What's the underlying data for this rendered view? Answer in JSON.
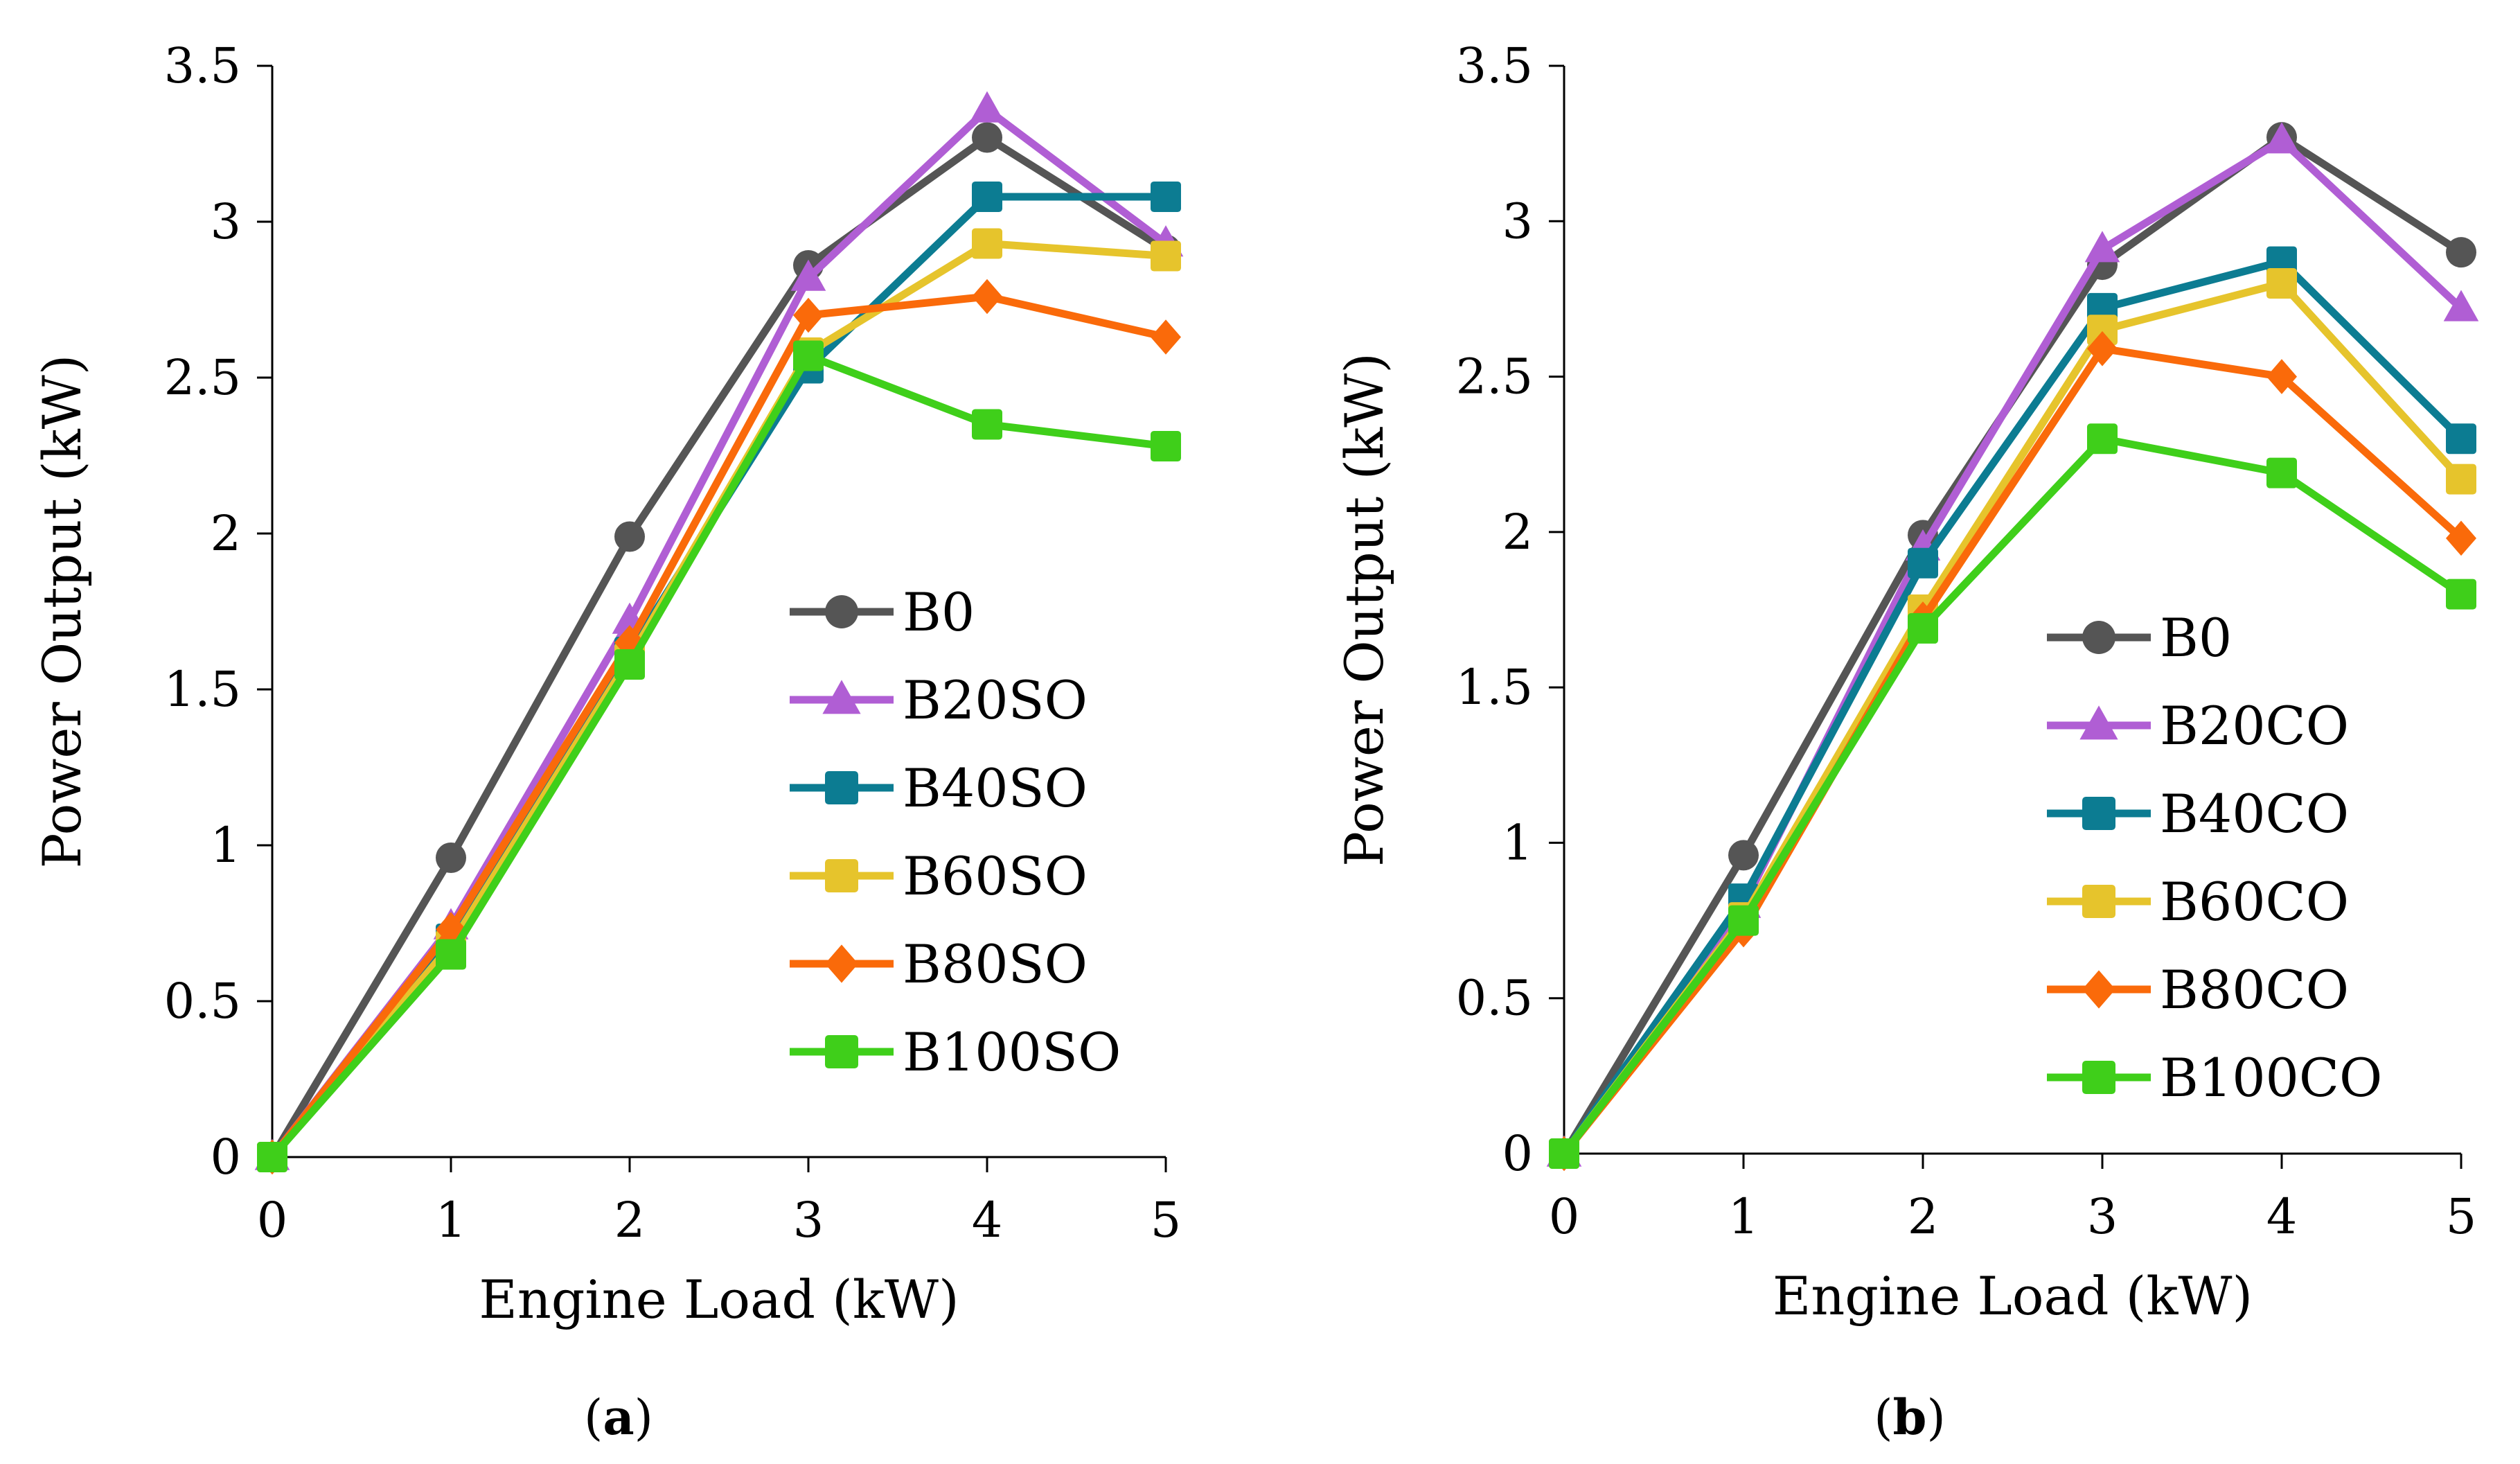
{
  "chart_data": [
    {
      "type": "line",
      "panel": "a",
      "caption": {
        "open": "(",
        "letter": "a",
        "close": ")"
      },
      "xlabel": "Engine Load (kW)",
      "ylabel": "Power Output (kW)",
      "x": [
        0,
        1,
        2,
        3,
        4,
        5
      ],
      "xlim": [
        0,
        5
      ],
      "ylim": [
        0,
        3.5
      ],
      "x_ticks": [
        "0",
        "1",
        "2",
        "3",
        "4",
        "5"
      ],
      "y_ticks": [
        "0",
        "0.5",
        "1",
        "1.5",
        "2",
        "2.5",
        "3",
        "3.5"
      ],
      "legend_position": "center-right",
      "series": [
        {
          "name": "B0",
          "values": [
            0,
            0.96,
            1.99,
            2.86,
            3.27,
            2.91
          ],
          "color": "#555555",
          "marker": "circle"
        },
        {
          "name": "B20SO",
          "values": [
            0,
            0.74,
            1.72,
            2.82,
            3.36,
            2.93
          ],
          "color": "#b05ed4",
          "marker": "triangle"
        },
        {
          "name": "B40SO",
          "values": [
            0,
            0.7,
            1.62,
            2.53,
            3.08,
            3.08
          ],
          "color": "#0c7c92",
          "marker": "square"
        },
        {
          "name": "B60SO",
          "values": [
            0,
            0.68,
            1.6,
            2.58,
            2.93,
            2.89
          ],
          "color": "#e6c42c",
          "marker": "square"
        },
        {
          "name": "B80SO",
          "values": [
            0,
            0.73,
            1.65,
            2.7,
            2.76,
            2.63
          ],
          "color": "#fa6a0a",
          "marker": "diamond"
        },
        {
          "name": "B100SO",
          "values": [
            0,
            0.65,
            1.58,
            2.57,
            2.35,
            2.28
          ],
          "color": "#3fcf1a",
          "marker": "square"
        }
      ]
    },
    {
      "type": "line",
      "panel": "b",
      "caption": {
        "open": "(",
        "letter": "b",
        "close": ")"
      },
      "xlabel": "Engine Load (kW)",
      "ylabel": "Power Output (kW)",
      "x": [
        0,
        1,
        2,
        3,
        4,
        5
      ],
      "xlim": [
        0,
        5
      ],
      "ylim": [
        0,
        3.5
      ],
      "x_ticks": [
        "0",
        "1",
        "2",
        "3",
        "4",
        "5"
      ],
      "y_ticks": [
        "0",
        "0.5",
        "1",
        "1.5",
        "2",
        "2.5",
        "3",
        "3.5"
      ],
      "legend_position": "center-right",
      "series": [
        {
          "name": "B0",
          "values": [
            0,
            0.96,
            1.99,
            2.86,
            3.27,
            2.9
          ],
          "color": "#555555",
          "marker": "circle"
        },
        {
          "name": "B20CO",
          "values": [
            0,
            0.8,
            1.95,
            2.91,
            3.26,
            2.72
          ],
          "color": "#b05ed4",
          "marker": "triangle"
        },
        {
          "name": "B40CO",
          "values": [
            0,
            0.82,
            1.9,
            2.72,
            2.87,
            2.3
          ],
          "color": "#0c7c92",
          "marker": "square"
        },
        {
          "name": "B60CO",
          "values": [
            0,
            0.76,
            1.75,
            2.65,
            2.8,
            2.17
          ],
          "color": "#e6c42c",
          "marker": "square"
        },
        {
          "name": "B80CO",
          "values": [
            0,
            0.72,
            1.72,
            2.59,
            2.5,
            1.98
          ],
          "color": "#fa6a0a",
          "marker": "diamond"
        },
        {
          "name": "B100CO",
          "values": [
            0,
            0.75,
            1.69,
            2.3,
            2.19,
            1.8
          ],
          "color": "#3fcf1a",
          "marker": "square"
        }
      ]
    }
  ]
}
